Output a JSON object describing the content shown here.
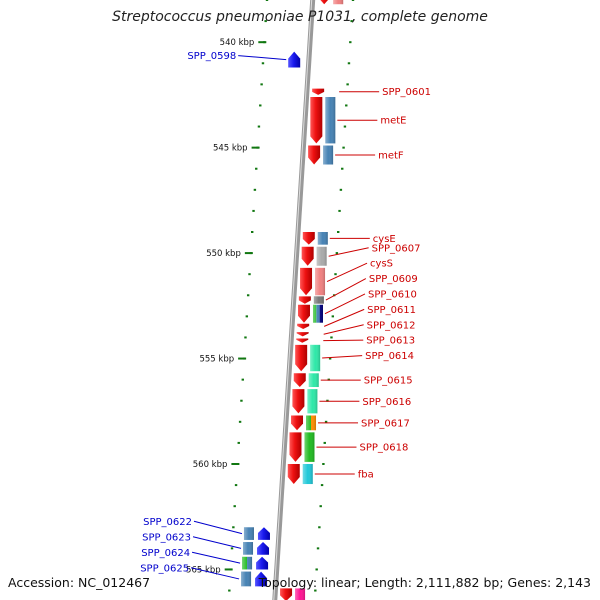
{
  "title": "Streptococcus pneumoniae P1031, complete genome",
  "footer": {
    "accession": "Accession: NC_012467",
    "topology": "Topology: linear; Length: 2,111,882 bp; Genes: 2,143"
  },
  "diagram": {
    "axis": {
      "start_kbp": 538,
      "end_kbp": 565.5,
      "tick_labels": [
        "540 kbp",
        "545 kbp",
        "550 kbp",
        "555 kbp",
        "560 kbp",
        "565 kbp"
      ],
      "tick_values_kbp": [
        540,
        545,
        550,
        555,
        560,
        565
      ]
    },
    "colors": {
      "forward_gene": "#ee1111",
      "reverse_gene": "#1a1aee",
      "forward_label": "#cc0000",
      "reverse_label": "#0000cc",
      "backbone": "#999999",
      "tick": "#117711"
    },
    "genes": [
      {
        "label": "SPP_0598",
        "strand": "reverse",
        "start_kbp": 540.45,
        "end_kbp": 541.2,
        "func_colors": []
      },
      {
        "label": "SPP_0601",
        "strand": "forward",
        "start_kbp": 542.2,
        "end_kbp": 542.5,
        "func_colors": []
      },
      {
        "label": "metE",
        "strand": "forward",
        "start_kbp": 542.6,
        "end_kbp": 544.8,
        "func_colors": [
          "#4682b4"
        ]
      },
      {
        "label": "metF",
        "strand": "forward",
        "start_kbp": 544.9,
        "end_kbp": 545.8,
        "func_colors": [
          "#4682b4"
        ]
      },
      {
        "label": "cysE",
        "strand": "forward",
        "start_kbp": 549.0,
        "end_kbp": 549.6,
        "func_colors": [
          "#4682b4"
        ]
      },
      {
        "label": "SPP_0607",
        "strand": "forward",
        "start_kbp": 549.7,
        "end_kbp": 550.6,
        "func_colors": [
          "#aaaaaa"
        ]
      },
      {
        "label": "cysS",
        "strand": "forward",
        "start_kbp": 550.7,
        "end_kbp": 552.0,
        "func_colors": [
          "#f08080"
        ]
      },
      {
        "label": "SPP_0609",
        "strand": "forward",
        "start_kbp": 552.05,
        "end_kbp": 552.4,
        "func_colors": [
          "#777777"
        ]
      },
      {
        "label": "SPP_0610",
        "strand": "forward",
        "start_kbp": 552.45,
        "end_kbp": 553.3,
        "func_colors": [
          "#22bb22",
          "#4682b4",
          "#000080"
        ]
      },
      {
        "label": "SPP_0611",
        "strand": "forward",
        "start_kbp": 553.35,
        "end_kbp": 553.6,
        "func_colors": []
      },
      {
        "label": "SPP_0612",
        "strand": "forward",
        "start_kbp": 553.75,
        "end_kbp": 553.95,
        "func_colors": []
      },
      {
        "label": "SPP_0613",
        "strand": "forward",
        "start_kbp": 554.05,
        "end_kbp": 554.25,
        "func_colors": []
      },
      {
        "label": "SPP_0614",
        "strand": "forward",
        "start_kbp": 554.35,
        "end_kbp": 555.6,
        "func_colors": [
          "#2ee8a8"
        ]
      },
      {
        "label": "SPP_0615",
        "strand": "forward",
        "start_kbp": 555.7,
        "end_kbp": 556.35,
        "func_colors": [
          "#2ee8a8"
        ]
      },
      {
        "label": "SPP_0616",
        "strand": "forward",
        "start_kbp": 556.45,
        "end_kbp": 557.6,
        "func_colors": [
          "#2ee8a8"
        ]
      },
      {
        "label": "SPP_0617",
        "strand": "forward",
        "start_kbp": 557.7,
        "end_kbp": 558.4,
        "func_colors": [
          "#22bb22",
          "#ff8c00"
        ]
      },
      {
        "label": "SPP_0618",
        "strand": "forward",
        "start_kbp": 558.5,
        "end_kbp": 559.9,
        "func_colors": [
          "#22bb22"
        ]
      },
      {
        "label": "fba",
        "strand": "forward",
        "start_kbp": 560.0,
        "end_kbp": 560.95,
        "func_colors": [
          "#20c8d8"
        ]
      },
      {
        "label": "SPP_0622",
        "strand": "reverse",
        "start_kbp": 563.0,
        "end_kbp": 563.6,
        "func_colors": [
          "#4682b4"
        ]
      },
      {
        "label": "SPP_0623",
        "strand": "reverse",
        "start_kbp": 563.7,
        "end_kbp": 564.3,
        "func_colors": [
          "#4682b4"
        ]
      },
      {
        "label": "SPP_0624",
        "strand": "reverse",
        "start_kbp": 564.4,
        "end_kbp": 565.0,
        "func_colors": [
          "#22bb22",
          "#4682b4"
        ]
      },
      {
        "label": "SPP_0625",
        "strand": "reverse",
        "start_kbp": 565.1,
        "end_kbp": 565.8,
        "func_colors": [
          "#4682b4"
        ]
      }
    ],
    "edge_genes": [
      {
        "strand": "forward",
        "start_kbp": 537.5,
        "end_kbp": 538.2,
        "func_colors": [
          "#f08080"
        ]
      },
      {
        "strand": "forward",
        "start_kbp": 565.9,
        "end_kbp": 566.5,
        "func_colors": [
          "#ff1493"
        ]
      }
    ]
  }
}
